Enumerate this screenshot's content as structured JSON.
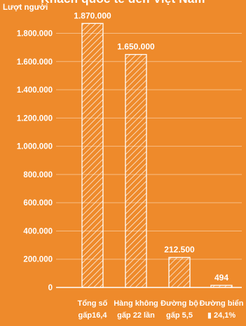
{
  "chart_data": {
    "type": "bar",
    "title": "Khách quốc tế đến Việt Nam",
    "ylabel": "Lượt người",
    "ylim": [
      0,
      1900000
    ],
    "y_ticks": [
      "0",
      "200.000",
      "400.000",
      "600.000",
      "800.000",
      "1.000.000",
      "1.200.000",
      "1.400.000",
      "1.600.000",
      "1.800.000"
    ],
    "categories": [
      [
        "Tổng số",
        "gấp16,4"
      ],
      [
        "Hàng không",
        "gấp 22 lần"
      ],
      [
        "Đường bộ",
        "gấp 5,5"
      ],
      [
        "Đường biển",
        "▮ 24,1%"
      ]
    ],
    "values": [
      1870000,
      1650000,
      212500,
      494
    ],
    "value_labels": [
      "1.870.000",
      "1.650.000",
      "212.500",
      "494"
    ],
    "grid": true,
    "colors": {
      "background": "#ee8a2b",
      "bar": "#ffffff",
      "gridline": "#f6bd86",
      "text": "#ffffff"
    }
  }
}
